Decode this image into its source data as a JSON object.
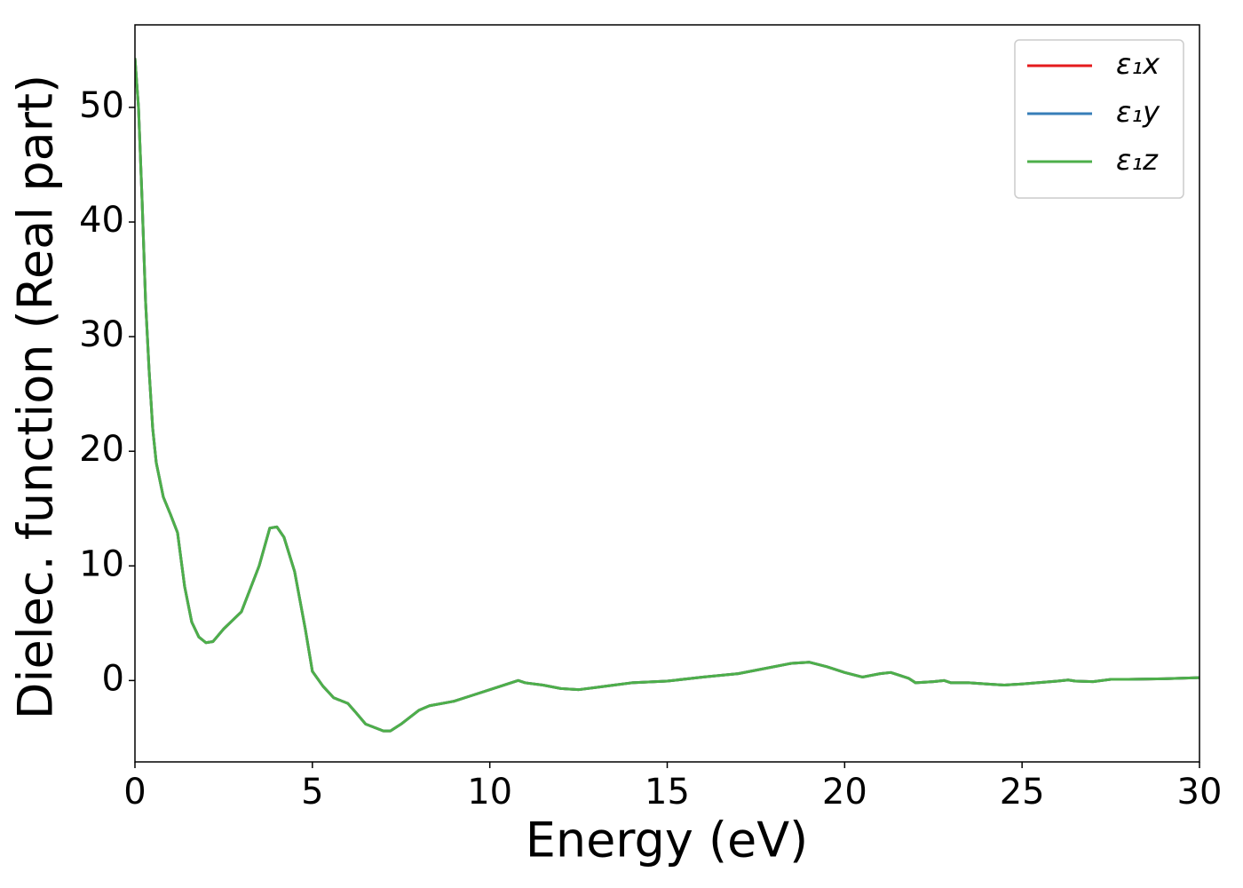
{
  "chart_data": {
    "type": "line",
    "xlabel": "Energy (eV)",
    "ylabel": "Dielec. function (Real part)",
    "x": [
      0,
      0.1,
      0.2,
      0.3,
      0.4,
      0.5,
      0.6,
      0.8,
      1.0,
      1.2,
      1.4,
      1.6,
      1.8,
      2.0,
      2.2,
      2.5,
      3.0,
      3.5,
      3.8,
      4.0,
      4.2,
      4.5,
      4.8,
      5.0,
      5.3,
      5.6,
      6.0,
      6.2,
      6.5,
      7.0,
      7.2,
      7.5,
      8.0,
      8.3,
      9.0,
      9.5,
      10.0,
      10.5,
      10.8,
      11.0,
      11.5,
      12.0,
      12.5,
      13.0,
      13.5,
      14.0,
      15.0,
      16.0,
      17.0,
      18.0,
      18.5,
      19.0,
      19.5,
      20.0,
      20.5,
      21.0,
      21.3,
      21.8,
      22.0,
      22.5,
      22.8,
      23.0,
      23.5,
      24.0,
      24.5,
      25.0,
      26.0,
      26.3,
      26.5,
      27.0,
      27.5,
      28.0,
      29.0,
      30.0
    ],
    "series": [
      {
        "name": "ε₁x",
        "color": "#e41a1c",
        "values": [
          54.3,
          50,
          42,
          33,
          27,
          22,
          19,
          16,
          14.5,
          12.9,
          8.2,
          5.1,
          3.8,
          3.3,
          3.4,
          4.5,
          6,
          10,
          13.3,
          13.4,
          12.5,
          9.5,
          4.5,
          0.8,
          -0.5,
          -1.5,
          -2,
          -2.7,
          -3.8,
          -4.4,
          -4.4,
          -3.8,
          -2.6,
          -2.2,
          -1.8,
          -1.3,
          -0.8,
          -0.3,
          0,
          -0.2,
          -0.4,
          -0.7,
          -0.8,
          -0.6,
          -0.4,
          -0.2,
          -0.05,
          0.3,
          0.6,
          1.2,
          1.5,
          1.6,
          1.2,
          0.7,
          0.3,
          0.6,
          0.7,
          0.2,
          -0.2,
          -0.1,
          0,
          -0.2,
          -0.2,
          -0.3,
          -0.4,
          -0.3,
          -0.05,
          0.05,
          -0.05,
          -0.1,
          0.1,
          0.1,
          0.15,
          0.25
        ]
      },
      {
        "name": "ε₁y",
        "color": "#377eb8",
        "values": [
          54.3,
          50,
          42,
          33,
          27,
          22,
          19,
          16,
          14.5,
          12.9,
          8.2,
          5.1,
          3.8,
          3.3,
          3.4,
          4.5,
          6,
          10,
          13.3,
          13.4,
          12.5,
          9.5,
          4.5,
          0.8,
          -0.5,
          -1.5,
          -2,
          -2.7,
          -3.8,
          -4.4,
          -4.4,
          -3.8,
          -2.6,
          -2.2,
          -1.8,
          -1.3,
          -0.8,
          -0.3,
          0,
          -0.2,
          -0.4,
          -0.7,
          -0.8,
          -0.6,
          -0.4,
          -0.2,
          -0.05,
          0.3,
          0.6,
          1.2,
          1.5,
          1.6,
          1.2,
          0.7,
          0.3,
          0.6,
          0.7,
          0.2,
          -0.2,
          -0.1,
          0,
          -0.2,
          -0.2,
          -0.3,
          -0.4,
          -0.3,
          -0.05,
          0.05,
          -0.05,
          -0.1,
          0.1,
          0.1,
          0.15,
          0.25
        ]
      },
      {
        "name": "ε₁z",
        "color": "#4daf4a",
        "values": [
          54.3,
          50,
          42,
          33,
          27,
          22,
          19,
          16,
          14.5,
          12.9,
          8.2,
          5.1,
          3.8,
          3.3,
          3.4,
          4.5,
          6,
          10,
          13.3,
          13.4,
          12.5,
          9.5,
          4.5,
          0.8,
          -0.5,
          -1.5,
          -2,
          -2.7,
          -3.8,
          -4.4,
          -4.4,
          -3.8,
          -2.6,
          -2.2,
          -1.8,
          -1.3,
          -0.8,
          -0.3,
          0,
          -0.2,
          -0.4,
          -0.7,
          -0.8,
          -0.6,
          -0.4,
          -0.2,
          -0.05,
          0.3,
          0.6,
          1.2,
          1.5,
          1.6,
          1.2,
          0.7,
          0.3,
          0.6,
          0.7,
          0.2,
          -0.2,
          -0.1,
          0,
          -0.2,
          -0.2,
          -0.3,
          -0.4,
          -0.3,
          -0.05,
          0.05,
          -0.05,
          -0.1,
          0.1,
          0.1,
          0.15,
          0.25
        ]
      }
    ],
    "xlim": [
      0,
      30
    ],
    "xticks": [
      0,
      5,
      10,
      15,
      20,
      25,
      30
    ],
    "ylim": [
      -7.1,
      57.2
    ],
    "yticks": [
      0,
      10,
      20,
      30,
      40,
      50
    ],
    "legend": "upper right"
  }
}
